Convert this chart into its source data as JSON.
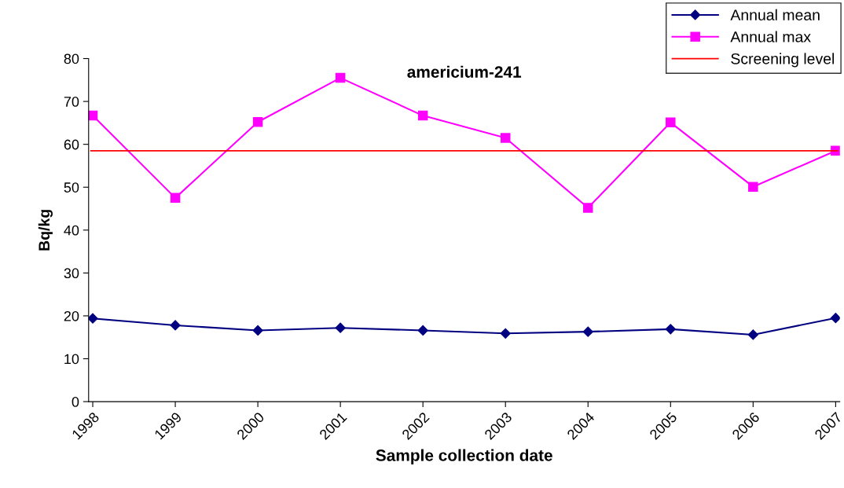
{
  "chart_data": {
    "type": "line",
    "title": "americium-241",
    "xlabel": "Sample collection date",
    "ylabel": "Bq/kg",
    "categories": [
      "1998",
      "1999",
      "2000",
      "2001",
      "2002",
      "2003",
      "2004",
      "2005",
      "2006",
      "2007"
    ],
    "series": [
      {
        "name": "Annual mean",
        "color": "#000080",
        "marker": "diamond",
        "values": [
          19.4,
          17.8,
          16.6,
          17.2,
          16.6,
          15.9,
          16.3,
          16.9,
          15.6,
          19.5
        ]
      },
      {
        "name": "Annual max",
        "color": "#ff00ff",
        "marker": "square",
        "values": [
          66.7,
          47.5,
          65.2,
          75.5,
          66.7,
          61.5,
          45.2,
          65.1,
          50.1,
          58.5
        ]
      }
    ],
    "ref_lines": [
      {
        "axis": "y",
        "value": 58.5,
        "label": "Screening level",
        "color": "#ff0000",
        "line_style": "solid"
      }
    ],
    "ylim": [
      0,
      80
    ],
    "yticks": [
      0,
      10,
      20,
      30,
      40,
      50,
      60,
      70,
      80
    ],
    "grid": false,
    "legend": "top right",
    "line_style": "solid"
  }
}
